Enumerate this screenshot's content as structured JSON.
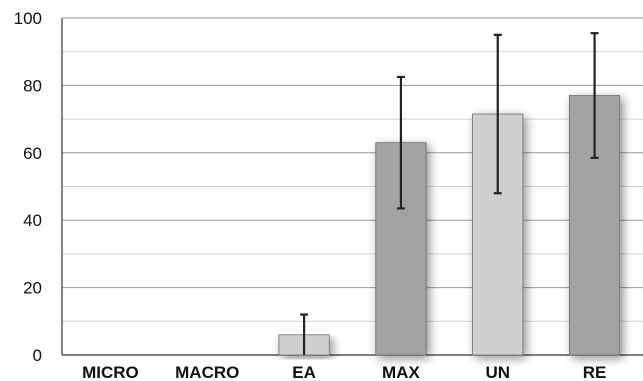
{
  "chart_data": {
    "type": "bar",
    "categories": [
      "MICRO",
      "MACRO",
      "EA",
      "MAX",
      "UN",
      "RE"
    ],
    "values": [
      0,
      0,
      6,
      63,
      71.5,
      77
    ],
    "error": [
      0,
      0,
      6,
      19.5,
      23.5,
      18.5
    ],
    "ylim": [
      0,
      100
    ],
    "yticks": [
      0,
      20,
      40,
      60,
      80,
      100
    ],
    "grid": true,
    "colors": [
      "#a3a3a3",
      "#a3a3a3",
      "#cfcfcf",
      "#a3a3a3",
      "#cfcfcf",
      "#a3a3a3"
    ],
    "title": "",
    "xlabel": "",
    "ylabel": ""
  }
}
